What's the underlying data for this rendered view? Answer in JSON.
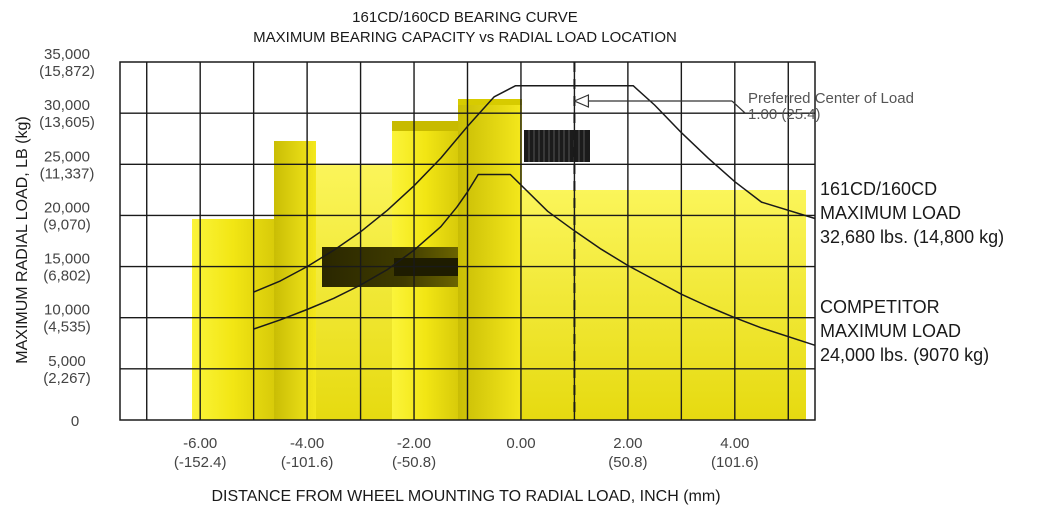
{
  "chart_data": {
    "type": "line",
    "title": "161CD/160CD BEARING CURVE",
    "subtitle": "MAXIMUM BEARING CAPACITY vs RADIAL LOAD LOCATION",
    "xlabel": "DISTANCE FROM WHEEL MOUNTING TO RADIAL LOAD, INCH (mm)",
    "ylabel": "MAXIMUM RADIAL LOAD, LB (kg)",
    "xlim": [
      -7.5,
      5.5
    ],
    "ylim": [
      0,
      35000
    ],
    "grid": true,
    "x_ticks": [
      {
        "value": -6,
        "label": "-6.00",
        "sub": "(-152.4)"
      },
      {
        "value": -4,
        "label": "-4.00",
        "sub": "(-101.6)"
      },
      {
        "value": -2,
        "label": "-2.00",
        "sub": "(-50.8)"
      },
      {
        "value": 0,
        "label": "0.00",
        "sub": ""
      },
      {
        "value": 2,
        "label": "2.00",
        "sub": "(50.8)"
      },
      {
        "value": 4,
        "label": "4.00",
        "sub": "(101.6)"
      }
    ],
    "y_ticks": [
      {
        "value": 0,
        "label": "0",
        "sub": ""
      },
      {
        "value": 5000,
        "label": "5,000",
        "sub": "(2,267)"
      },
      {
        "value": 10000,
        "label": "10,000",
        "sub": "(4,535)"
      },
      {
        "value": 15000,
        "label": "15,000",
        "sub": "(6,802)"
      },
      {
        "value": 20000,
        "label": "20,000",
        "sub": "(9,070)"
      },
      {
        "value": 25000,
        "label": "25,000",
        "sub": "(11,337)"
      },
      {
        "value": 30000,
        "label": "30,000",
        "sub": "(13,605)"
      },
      {
        "value": 35000,
        "label": "35,000",
        "sub": "(15,872)"
      }
    ],
    "series": [
      {
        "label_lines": [
          "161CD/160CD",
          "MAXIMUM LOAD",
          "32,680 lbs. (14,800 kg)"
        ],
        "points": [
          [
            -5,
            12500
          ],
          [
            -4.5,
            13600
          ],
          [
            -4,
            15000
          ],
          [
            -3.5,
            16600
          ],
          [
            -3,
            18400
          ],
          [
            -2.5,
            20500
          ],
          [
            -2,
            22900
          ],
          [
            -1.5,
            25600
          ],
          [
            -1,
            28700
          ],
          [
            -0.5,
            31600
          ],
          [
            -0.1,
            32680
          ],
          [
            2.1,
            32680
          ],
          [
            2.5,
            30800
          ],
          [
            3,
            28100
          ],
          [
            3.5,
            25600
          ],
          [
            4,
            23300
          ],
          [
            4.5,
            21300
          ],
          [
            5.5,
            19700
          ]
        ]
      },
      {
        "label_lines": [
          "COMPETITOR",
          "MAXIMUM LOAD",
          "24,000 lbs. (9070 kg)"
        ],
        "points": [
          [
            -5,
            8900
          ],
          [
            -4.5,
            9800
          ],
          [
            -4,
            10800
          ],
          [
            -3.5,
            11900
          ],
          [
            -3,
            13200
          ],
          [
            -2.5,
            14700
          ],
          [
            -2,
            16600
          ],
          [
            -1.5,
            18900
          ],
          [
            -1.2,
            20800
          ],
          [
            -1,
            22300
          ],
          [
            -0.8,
            24000
          ],
          [
            -0.2,
            24000
          ],
          [
            0.5,
            20400
          ],
          [
            1,
            18500
          ],
          [
            1.5,
            16700
          ],
          [
            2,
            15100
          ],
          [
            2.5,
            13700
          ],
          [
            3,
            12300
          ],
          [
            3.5,
            11100
          ],
          [
            4,
            10000
          ],
          [
            4.5,
            9000
          ],
          [
            5.5,
            7300
          ]
        ]
      }
    ],
    "reference_line": {
      "x": 1.0,
      "style": "dashed",
      "label_lines": [
        "Preferred Center of Load",
        "1.00 (25.4)"
      ]
    }
  },
  "colors": {
    "product_yellow": "#f5ea18",
    "product_shadow": "#8a8300",
    "grid": "#1a1a1a",
    "curve": "#1a1a1a"
  }
}
